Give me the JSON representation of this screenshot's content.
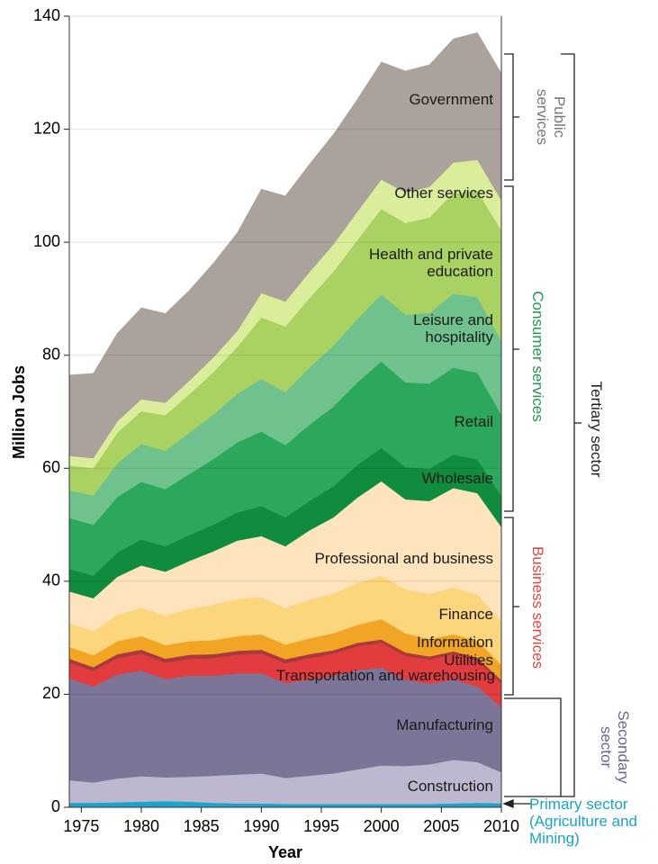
{
  "chart_data": {
    "type": "stacked_area",
    "y_label": "Million Jobs",
    "x_label": "Year",
    "x": [
      1974,
      1976,
      1978,
      1980,
      1982,
      1984,
      1986,
      1988,
      1990,
      1992,
      1994,
      1996,
      1998,
      2000,
      2002,
      2004,
      2006,
      2008,
      2010
    ],
    "xlim": [
      1974,
      2010
    ],
    "xticks": [
      1975,
      1980,
      1985,
      1990,
      1995,
      2000,
      2005,
      2010
    ],
    "ylim": [
      0,
      140
    ],
    "yticks": [
      0,
      20,
      40,
      60,
      80,
      100,
      120,
      140
    ],
    "grid": true,
    "series": [
      {
        "name": "Primary sector (Agriculture and Mining)",
        "color": "#1aa3cc",
        "values": [
          0.8,
          0.8,
          0.9,
          1.0,
          1.1,
          1.0,
          0.8,
          0.7,
          0.7,
          0.6,
          0.6,
          0.6,
          0.6,
          0.6,
          0.6,
          0.6,
          0.7,
          0.8,
          0.7
        ]
      },
      {
        "name": "Construction",
        "color": "#bdb8cf",
        "values": [
          4.0,
          3.6,
          4.2,
          4.5,
          4.2,
          4.4,
          4.8,
          5.1,
          5.3,
          4.6,
          5.0,
          5.4,
          6.1,
          6.8,
          6.7,
          7.0,
          7.7,
          7.2,
          5.5
        ]
      },
      {
        "name": "Manufacturing",
        "color": "#7c7598",
        "values": [
          18.0,
          17.0,
          18.4,
          18.7,
          17.4,
          17.9,
          17.7,
          17.9,
          17.7,
          16.8,
          17.0,
          17.2,
          17.6,
          17.3,
          15.3,
          14.3,
          14.2,
          13.4,
          11.5
        ]
      },
      {
        "name": "Transportation and warehousing",
        "color": "#e23c3f",
        "values": [
          2.8,
          2.7,
          2.9,
          3.0,
          2.9,
          3.0,
          3.1,
          3.3,
          3.5,
          3.5,
          3.8,
          4.0,
          4.2,
          4.4,
          4.2,
          4.2,
          4.5,
          4.5,
          4.2
        ]
      },
      {
        "name": "Utilities",
        "color": "#a83a3c",
        "values": [
          0.7,
          0.7,
          0.7,
          0.7,
          0.7,
          0.7,
          0.7,
          0.7,
          0.7,
          0.7,
          0.7,
          0.6,
          0.6,
          0.6,
          0.6,
          0.6,
          0.5,
          0.6,
          0.6
        ]
      },
      {
        "name": "Information",
        "color": "#f2a425",
        "values": [
          2.1,
          2.1,
          2.3,
          2.4,
          2.4,
          2.4,
          2.5,
          2.6,
          2.7,
          2.6,
          2.8,
          3.0,
          3.2,
          3.6,
          3.4,
          3.1,
          3.0,
          3.0,
          2.7
        ]
      },
      {
        "name": "Finance",
        "color": "#fbd67c",
        "values": [
          4.2,
          4.3,
          4.7,
          5.0,
          5.3,
          5.7,
          6.3,
          6.6,
          6.6,
          6.5,
          6.9,
          7.0,
          7.4,
          7.7,
          7.8,
          8.0,
          8.3,
          8.2,
          7.7
        ]
      },
      {
        "name": "Professional and business",
        "color": "#fde4bd",
        "values": [
          5.6,
          5.8,
          6.7,
          7.5,
          7.7,
          8.5,
          9.4,
          10.3,
          10.8,
          10.9,
          12.2,
          13.5,
          15.1,
          16.7,
          15.9,
          16.4,
          17.6,
          17.9,
          16.7
        ]
      },
      {
        "name": "Wholesale",
        "color": "#108c3e",
        "values": [
          4.0,
          4.0,
          4.3,
          4.6,
          4.5,
          4.6,
          4.7,
          5.0,
          5.3,
          5.1,
          5.2,
          5.5,
          5.8,
          5.9,
          5.7,
          5.7,
          5.9,
          6.0,
          5.5
        ]
      },
      {
        "name": "Retail",
        "color": "#2ca85c",
        "values": [
          9.0,
          9.0,
          9.8,
          10.2,
          10.1,
          10.8,
          11.6,
          12.4,
          13.2,
          12.8,
          13.5,
          14.1,
          14.6,
          15.3,
          15.0,
          15.1,
          15.4,
          15.3,
          14.4
        ]
      },
      {
        "name": "Leisure and hospitality",
        "color": "#6fc28d",
        "values": [
          4.9,
          5.2,
          6.0,
          6.7,
          6.8,
          7.3,
          7.9,
          8.6,
          9.3,
          9.4,
          10.1,
          10.8,
          11.2,
          11.9,
          12.0,
          12.5,
          13.1,
          13.4,
          13.0
        ]
      },
      {
        "name": "Health and private education",
        "color": "#aad263",
        "values": [
          4.4,
          4.8,
          5.4,
          5.8,
          6.3,
          6.8,
          7.5,
          8.3,
          10.9,
          11.6,
          12.3,
          13.1,
          14.0,
          15.1,
          16.2,
          16.9,
          17.8,
          18.8,
          19.6
        ]
      },
      {
        "name": "Other services",
        "color": "#daed9b",
        "values": [
          1.7,
          1.8,
          2.0,
          2.1,
          2.2,
          2.4,
          2.6,
          2.8,
          4.3,
          4.4,
          4.6,
          4.8,
          5.0,
          5.2,
          5.4,
          5.4,
          5.4,
          5.5,
          5.3
        ]
      },
      {
        "name": "Government",
        "color": "#aaa29b",
        "values": [
          14.3,
          15.0,
          15.6,
          16.2,
          15.8,
          16.0,
          16.7,
          17.4,
          18.4,
          18.7,
          19.1,
          19.5,
          19.9,
          20.8,
          21.5,
          21.6,
          21.9,
          22.5,
          22.5
        ]
      }
    ],
    "annotations": [
      "Public services",
      "Consumer services",
      "Business services",
      "Secondary sector",
      "Tertiary sector"
    ]
  }
}
